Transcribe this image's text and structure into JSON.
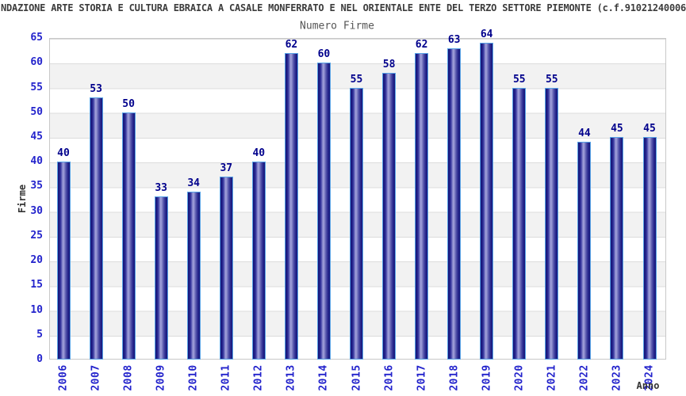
{
  "header": {
    "title": "NDAZIONE ARTE STORIA E CULTURA EBRAICA A CASALE MONFERRATO E NEL ORIENTALE ENTE DEL TERZO SETTORE PIEMONTE (c.f.91021240006",
    "subtitle": "Numero Firme"
  },
  "chart_data": {
    "type": "bar",
    "title": "Numero Firme",
    "xlabel": "Anno",
    "ylabel": "Firme",
    "categories": [
      "2006",
      "2007",
      "2008",
      "2009",
      "2010",
      "2011",
      "2012",
      "2013",
      "2014",
      "2015",
      "2016",
      "2017",
      "2018",
      "2019",
      "2020",
      "2021",
      "2022",
      "2023",
      "2024"
    ],
    "values": [
      40,
      53,
      50,
      33,
      34,
      37,
      40,
      62,
      60,
      55,
      58,
      62,
      63,
      64,
      55,
      55,
      44,
      45,
      45
    ],
    "ylim": [
      0,
      65
    ],
    "ytick_step": 5,
    "yticks": [
      0,
      5,
      10,
      15,
      20,
      25,
      30,
      35,
      40,
      45,
      50,
      55,
      60,
      65
    ],
    "grid": true,
    "band_shading": "alternating horizontal bands every 5 units, white then light gray from top",
    "legend": "none",
    "bar_value_labels": true
  },
  "colors": {
    "title_text": "#3c3c3c",
    "subtitle_text": "#555555",
    "axis_tick_text": "#2323cc",
    "bar_value_text": "#00008c",
    "axis_label_text": "#333333",
    "bar_border": "#57a2e6",
    "bar_dark": "#161678",
    "bar_mid": "#32329a",
    "bar_highlight": "#a2a2da",
    "grid_line": "#dcdcdc",
    "band_fill": "#f2f2f2",
    "plot_border": "#c8c8c8",
    "background": "#ffffff"
  }
}
